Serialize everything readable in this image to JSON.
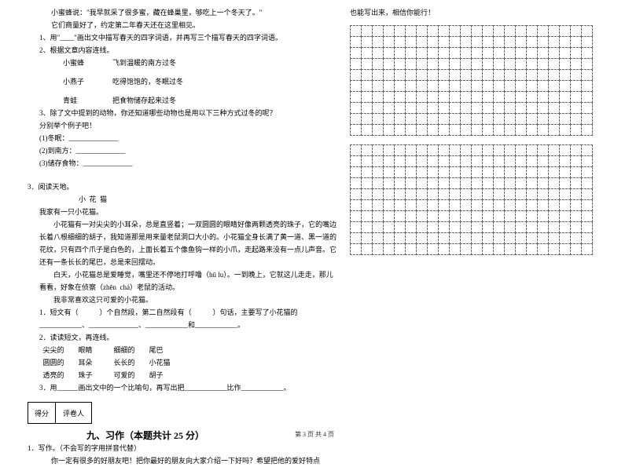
{
  "left": {
    "passage1": {
      "l1": "小蜜蜂说：\"我早就采了很多蜜，藏在蜂巢里，够吃上一个冬天了。\"",
      "l2": "它们商量好了，约定第二年春天还在这里相见。",
      "q1": "1、用\"____\"画出文中描写春天的四字词语，并再写三个描写春天的四字词语。",
      "q2": "2、根据文章内容连线。",
      "opt1a": "小蜜蜂",
      "opt1b": "飞到温暖的南方过冬",
      "opt2a": "小燕子",
      "opt2b": "吃得饱饱的，冬眠过冬",
      "opt3a": "青蛙",
      "opt3b": "把食物储存起来过冬",
      "q3": "3、除了文中提到的动物，你还知道哪些动物也是用以下三种方式过冬的呢？",
      "q3sub": "分别举个例子吧！",
      "q3a": "(1)冬眠：______________",
      "q3b": "(2)到南方：______________",
      "q3c": "(3)储存食物：______________"
    },
    "passage2": {
      "num": "3．阅读天地。",
      "title": "小  花  猫",
      "p1": "我家有一只小花猫。",
      "p2": "小花猫有一对尖尖的小耳朵，总是直竖着；一双圆圆的眼睛好像两颗透亮的珠子，它的嘴边长着八根细细的胡子，我知道那是用来量老鼠洞口大小的。小花猫全身长满了黄一道、黑一道的花纹，只有四个爪子是白色的，上面长着五个像鱼钩一样的小爪，走起路来没有一点儿声音。它还有一条长长的尾巴，总是来回摆动。",
      "p3": "白天，小花猫总是爱睡觉，嘴里还不停地打呼噜（hū lu）。一到晚上，它就这儿走走，那儿看看，好象在侦察（zhēn  chá）老鼠的活动。",
      "p4": "我非常喜欢这只可爱的小花猫。",
      "q1a": "1．短文有（            ）个自然段，第二自然段有（            ）句话，主要写了小花猫的",
      "q1b": "____________、______________、____________和____________。",
      "q2": "2．读读短文，再连线。",
      "r1": "  尖尖的        眼睛            细细的        尾巴",
      "r2": "  圆圆的        耳朵            长长的        小花猫",
      "r3": "  透亮的        珠子            可爱的        胡子",
      "q3": "3．用______画出文中的一个比喻句，再写出把____________比作____________。"
    },
    "score": {
      "c1": "得分",
      "c2": "评卷人"
    },
    "section9": "九、习作（本题共计 25 分）",
    "writing": {
      "num": "1．写作。（不会写的字用拼音代替）",
      "body": "你一定有很多的好朋友吧！把你最好的朋友向大家介绍一下好吗？希望把他的爱好特点"
    }
  },
  "right": {
    "cont": "也能写出来，相信你能行！"
  },
  "grid": {
    "cols": 22,
    "rows_block1": 10,
    "rows_block2": 10
  },
  "footer": "第 3 页  共 4 页"
}
